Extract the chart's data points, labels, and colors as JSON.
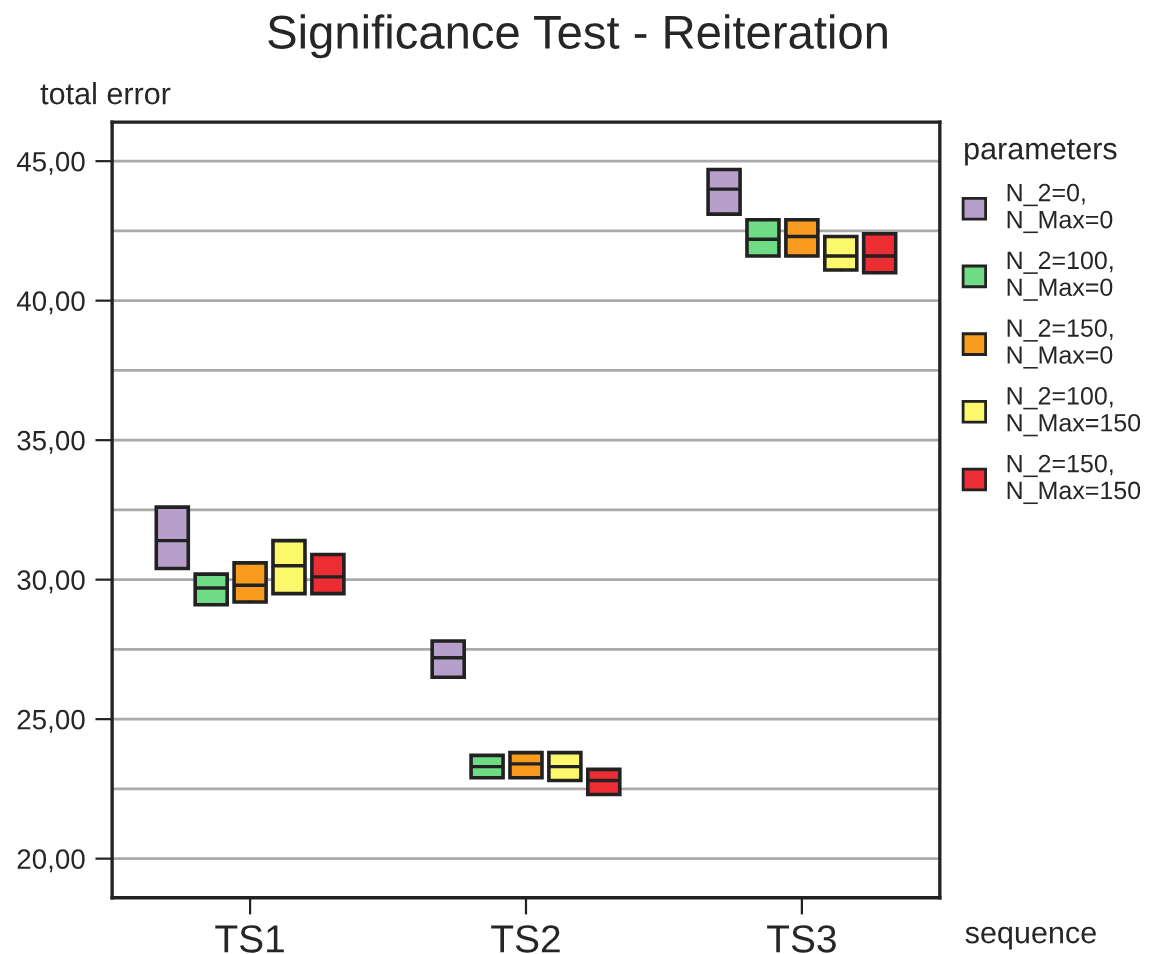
{
  "chart_data": {
    "type": "box",
    "title": "Significance Test - Reiteration",
    "xlabel": "sequence",
    "ylabel": "total error",
    "legend_title": "parameters",
    "categories": [
      "TS1",
      "TS2",
      "TS3"
    ],
    "series": [
      {
        "name": "N_2=0, N_Max=0",
        "color": "#b79fcb",
        "boxes": [
          {
            "low": 30.4,
            "q1": 30.4,
            "median": 31.4,
            "q3": 32.6,
            "high": 32.6
          },
          {
            "low": 26.5,
            "q1": 26.5,
            "median": 27.2,
            "q3": 27.8,
            "high": 27.8
          },
          {
            "low": 43.1,
            "q1": 43.1,
            "median": 44.0,
            "q3": 44.7,
            "high": 44.7
          }
        ]
      },
      {
        "name": "N_2=100, N_Max=0",
        "color": "#6fdb84",
        "boxes": [
          {
            "low": 29.1,
            "q1": 29.1,
            "median": 29.7,
            "q3": 30.2,
            "high": 30.2
          },
          {
            "low": 22.9,
            "q1": 22.9,
            "median": 23.3,
            "q3": 23.7,
            "high": 23.7
          },
          {
            "low": 41.6,
            "q1": 41.6,
            "median": 42.2,
            "q3": 42.9,
            "high": 42.9
          }
        ]
      },
      {
        "name": "N_2=150, N_Max=0",
        "color": "#f99b1e",
        "boxes": [
          {
            "low": 29.2,
            "q1": 29.2,
            "median": 29.8,
            "q3": 30.6,
            "high": 30.6
          },
          {
            "low": 22.9,
            "q1": 22.9,
            "median": 23.4,
            "q3": 23.8,
            "high": 23.8
          },
          {
            "low": 41.6,
            "q1": 41.6,
            "median": 42.3,
            "q3": 42.9,
            "high": 42.9
          }
        ]
      },
      {
        "name": "N_2=100, N_Max=150",
        "color": "#fbf86c",
        "boxes": [
          {
            "low": 29.5,
            "q1": 29.5,
            "median": 30.5,
            "q3": 31.4,
            "high": 31.4
          },
          {
            "low": 22.8,
            "q1": 22.8,
            "median": 23.3,
            "q3": 23.8,
            "high": 23.8
          },
          {
            "low": 41.1,
            "q1": 41.1,
            "median": 41.6,
            "q3": 42.3,
            "high": 42.3
          }
        ]
      },
      {
        "name": "N_2=150, N_Max=150",
        "color": "#ec2d34",
        "boxes": [
          {
            "low": 29.5,
            "q1": 29.5,
            "median": 30.1,
            "q3": 30.9,
            "high": 30.9
          },
          {
            "low": 22.3,
            "q1": 22.3,
            "median": 22.8,
            "q3": 23.2,
            "high": 23.2
          },
          {
            "low": 41.0,
            "q1": 41.0,
            "median": 41.6,
            "q3": 42.4,
            "high": 42.4
          }
        ]
      }
    ],
    "ylim": [
      18.6,
      46.4
    ],
    "yticks": [
      {
        "value": 20,
        "label": "20,00"
      },
      {
        "value": 22.5,
        "label": null
      },
      {
        "value": 25,
        "label": "25,00"
      },
      {
        "value": 27.5,
        "label": null
      },
      {
        "value": 30,
        "label": "30,00"
      },
      {
        "value": 32.5,
        "label": null
      },
      {
        "value": 35,
        "label": "35,00"
      },
      {
        "value": 37.5,
        "label": null
      },
      {
        "value": 40,
        "label": "40,00"
      },
      {
        "value": 42.5,
        "label": null
      },
      {
        "value": 45,
        "label": "45,00"
      }
    ],
    "grid": "y",
    "legend": "right"
  }
}
